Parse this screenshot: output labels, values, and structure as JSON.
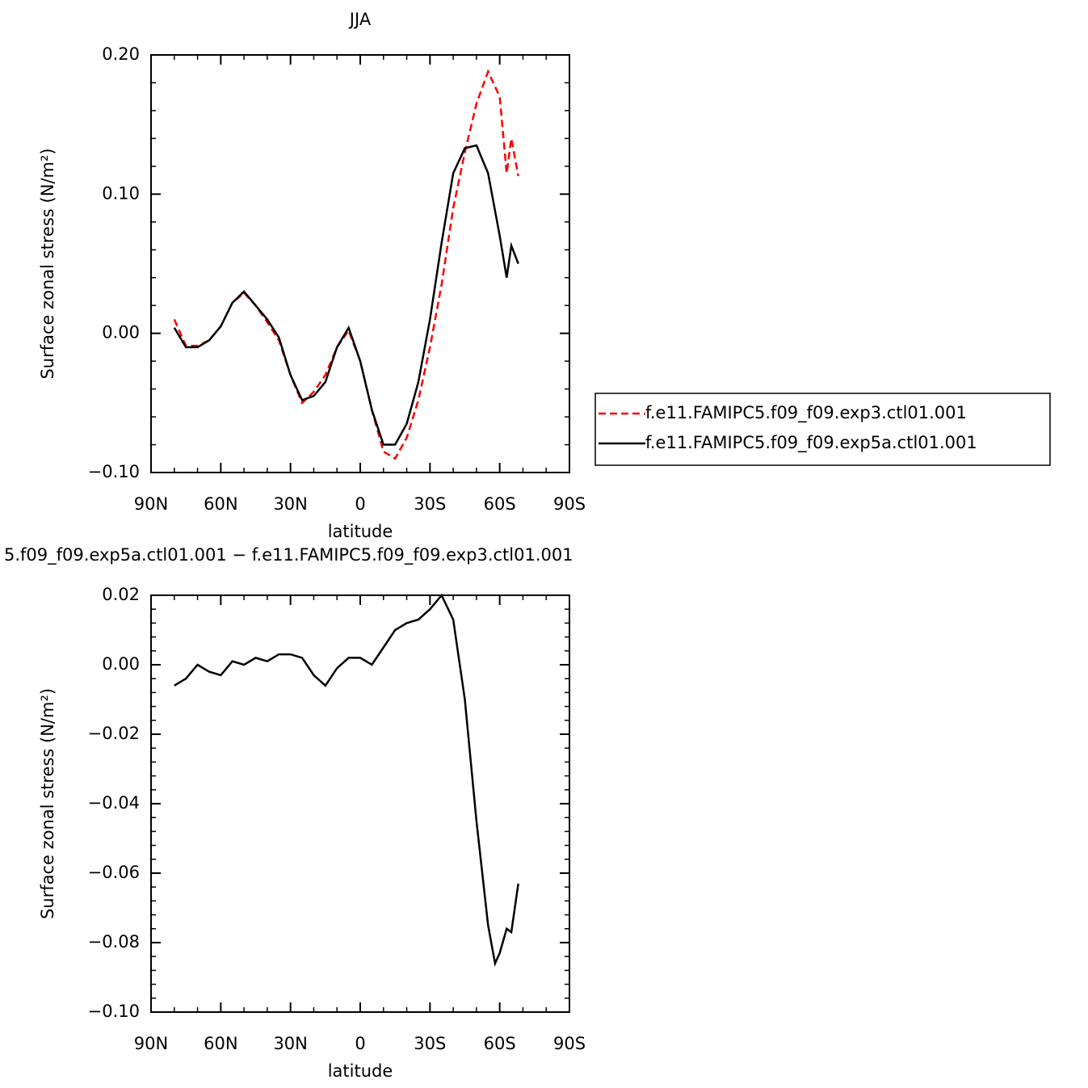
{
  "chart_data": [
    {
      "type": "line",
      "title": "JJA",
      "xlabel": "latitude",
      "ylabel": "Surface zonal stress (N/m²)",
      "x": [
        80,
        75,
        70,
        65,
        60,
        55,
        50,
        45,
        40,
        35,
        30,
        25,
        20,
        15,
        10,
        5,
        0,
        -5,
        -10,
        -15,
        -20,
        -25,
        -30,
        -35,
        -40,
        -45,
        -50,
        -55,
        -60,
        -63,
        -65,
        -68
      ],
      "series": [
        {
          "name": "f.e11.FAMIPC5.f09_f09.exp3.ctl01.001",
          "color": "#ff0000",
          "dash": true,
          "values": [
            0.01,
            -0.009,
            -0.009,
            -0.005,
            0.005,
            0.022,
            0.029,
            0.02,
            0.008,
            -0.005,
            -0.03,
            -0.05,
            -0.042,
            -0.03,
            -0.01,
            0.002,
            -0.02,
            -0.055,
            -0.085,
            -0.09,
            -0.075,
            -0.048,
            -0.01,
            0.035,
            0.09,
            0.13,
            0.165,
            0.188,
            0.17,
            0.115,
            0.14,
            0.113
          ]
        },
        {
          "name": "f.e11.FAMIPC5.f09_f09.exp5a.ctl01.001",
          "color": "#000000",
          "dash": false,
          "values": [
            0.004,
            -0.01,
            -0.01,
            -0.005,
            0.005,
            0.022,
            0.03,
            0.02,
            0.01,
            -0.003,
            -0.03,
            -0.048,
            -0.045,
            -0.035,
            -0.01,
            0.004,
            -0.02,
            -0.055,
            -0.08,
            -0.08,
            -0.065,
            -0.035,
            0.01,
            0.065,
            0.115,
            0.133,
            0.135,
            0.115,
            0.07,
            0.04,
            0.063,
            0.05
          ]
        }
      ],
      "xlim": [
        90,
        -90
      ],
      "xticks": [
        {
          "value": 90,
          "label": "90N"
        },
        {
          "value": 60,
          "label": "60N"
        },
        {
          "value": 30,
          "label": "30N"
        },
        0,
        {
          "value": -30,
          "label": "30S"
        },
        {
          "value": -60,
          "label": "60S"
        },
        {
          "value": -90,
          "label": "90S"
        }
      ],
      "ylim": [
        -0.1,
        0.2
      ],
      "yticks": [
        {
          "value": 0.2,
          "label": "0.20"
        },
        {
          "value": 0.1,
          "label": "0.10"
        },
        {
          "value": 0,
          "label": "0.00"
        },
        {
          "value": -0.1,
          "label": "−0.10"
        }
      ],
      "legend": "right"
    },
    {
      "type": "line",
      "title": "5.f09_f09.exp5a.ctl01.001 − f.e11.FAMIPC5.f09_f09.exp3.ctl01.001",
      "xlabel": "latitude",
      "ylabel": "Surface zonal stress (N/m²)",
      "x": [
        80,
        75,
        70,
        65,
        60,
        55,
        50,
        45,
        40,
        35,
        30,
        25,
        20,
        15,
        10,
        5,
        0,
        -5,
        -10,
        -15,
        -20,
        -25,
        -30,
        -35,
        -40,
        -45,
        -50,
        -55,
        -58,
        -60,
        -63,
        -65,
        -68
      ],
      "series": [
        {
          "color": "#000000",
          "dash": false,
          "values": [
            -0.006,
            -0.004,
            0.0,
            -0.002,
            -0.003,
            0.001,
            0.0,
            0.002,
            0.001,
            0.003,
            0.003,
            0.002,
            -0.003,
            -0.006,
            -0.001,
            0.002,
            0.002,
            0.0,
            0.005,
            0.01,
            0.012,
            0.013,
            0.016,
            0.02,
            0.013,
            -0.01,
            -0.045,
            -0.075,
            -0.086,
            -0.083,
            -0.076,
            -0.077,
            -0.063
          ]
        }
      ],
      "xlim": [
        90,
        -90
      ],
      "xticks": [
        {
          "value": 90,
          "label": "90N"
        },
        {
          "value": 60,
          "label": "60N"
        },
        {
          "value": 30,
          "label": "30N"
        },
        0,
        {
          "value": -30,
          "label": "30S"
        },
        {
          "value": -60,
          "label": "60S"
        },
        {
          "value": -90,
          "label": "90S"
        }
      ],
      "ylim": [
        -0.1,
        0.02
      ],
      "yticks": [
        {
          "value": 0.02,
          "label": "0.02"
        },
        {
          "value": 0,
          "label": "0.00"
        },
        {
          "value": -0.02,
          "label": "−0.02"
        },
        {
          "value": -0.04,
          "label": "−0.04"
        },
        {
          "value": -0.06,
          "label": "−0.06"
        },
        {
          "value": -0.08,
          "label": "−0.08"
        },
        {
          "value": -0.1,
          "label": "−0.10"
        }
      ]
    }
  ]
}
